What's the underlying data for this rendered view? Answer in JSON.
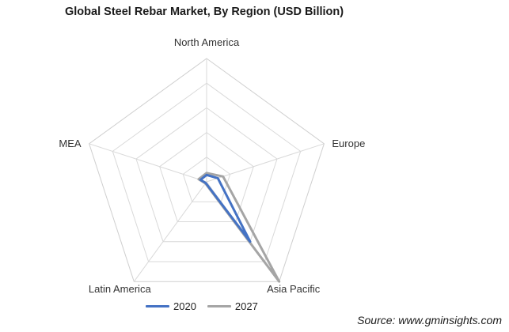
{
  "chart_data": {
    "type": "radar",
    "title": "Global Steel Rebar Market, By Region (USD Billion)",
    "categories": [
      "North America",
      "Europe",
      "Asia Pacific",
      "Latin America",
      "MEA"
    ],
    "rmax": 250,
    "grid_levels": 5,
    "grid": true,
    "legend_position": "bottom",
    "series": [
      {
        "name": "2020",
        "color": "#4472C4",
        "values": [
          14,
          24,
          150,
          3,
          13
        ]
      },
      {
        "name": "2027",
        "color": "#A5A5A5",
        "values": [
          18,
          35,
          250,
          4,
          17
        ]
      }
    ]
  },
  "source": "Source: www.gminsights.com"
}
